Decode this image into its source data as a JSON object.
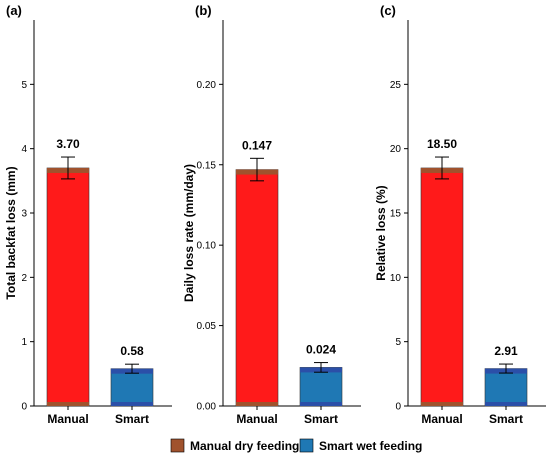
{
  "legend": [
    {
      "label": "Manual dry feeding",
      "color": "#A0522D"
    },
    {
      "label": "Smart wet feeding",
      "color": "#1F78B4"
    }
  ],
  "colors": {
    "manual_bar": "#FF1A1A",
    "manual_cap": "#A0522D",
    "smart_bar": "#1F78B4",
    "smart_cap": "#2B4FA8",
    "axis": "#000000"
  },
  "chart_data": [
    {
      "type": "bar",
      "panel": "(a)",
      "ylabel": "Total backfat loss (mm)",
      "categories": [
        "Manual",
        "Smart"
      ],
      "values": [
        3.7,
        0.58
      ],
      "value_labels": [
        "3.70",
        "0.58"
      ],
      "error": [
        0.17,
        0.07
      ],
      "ylim": [
        0,
        6
      ],
      "yticks": [
        0,
        1,
        2,
        3,
        4,
        5
      ],
      "ytick_labels": [
        "0",
        "1",
        "2",
        "3",
        "4",
        "5"
      ],
      "grid": false
    },
    {
      "type": "bar",
      "panel": "(b)",
      "ylabel": "Daily loss rate (mm/day)",
      "categories": [
        "Manual",
        "Smart"
      ],
      "values": [
        0.147,
        0.024
      ],
      "value_labels": [
        "0.147",
        "0.024"
      ],
      "error": [
        0.007,
        0.003
      ],
      "ylim": [
        0,
        0.24
      ],
      "yticks": [
        0,
        0.05,
        0.1,
        0.15,
        0.2
      ],
      "ytick_labels": [
        "0.00",
        "0.05",
        "0.10",
        "0.15",
        "0.20"
      ],
      "grid": false
    },
    {
      "type": "bar",
      "panel": "(c)",
      "ylabel": "Relative loss (%)",
      "categories": [
        "Manual",
        "Smart"
      ],
      "values": [
        18.5,
        2.91
      ],
      "value_labels": [
        "18.50",
        "2.91"
      ],
      "error": [
        0.85,
        0.35
      ],
      "ylim": [
        0,
        30
      ],
      "yticks": [
        0,
        5,
        10,
        15,
        20,
        25
      ],
      "ytick_labels": [
        "0",
        "5",
        "10",
        "15",
        "20",
        "25"
      ],
      "grid": false
    }
  ]
}
